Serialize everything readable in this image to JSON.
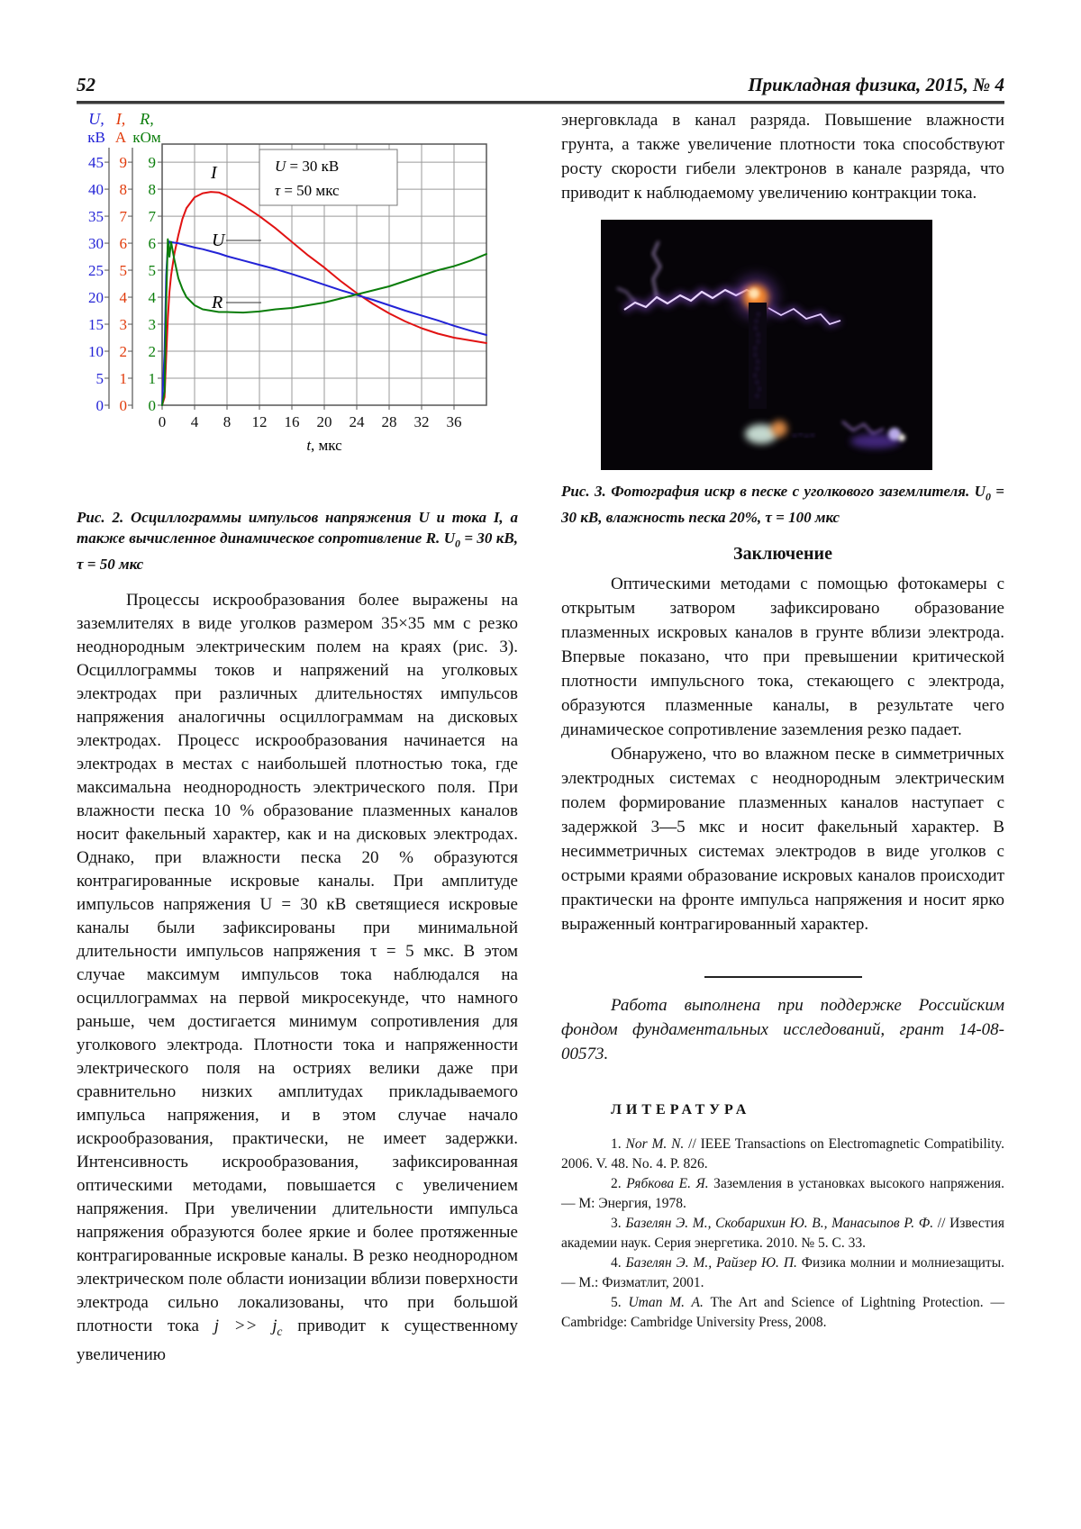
{
  "page": {
    "number": "52",
    "journal": "Прикладная физика, 2015, № 4"
  },
  "chart_data": {
    "type": "line",
    "x": [
      0,
      0.3,
      0.5,
      0.7,
      0.9,
      1.1,
      1.5,
      2,
      2.5,
      3,
      4,
      5,
      6,
      7,
      8,
      10,
      12,
      14,
      16,
      18,
      20,
      22,
      24,
      26,
      28,
      30,
      32,
      34,
      36,
      38,
      40
    ],
    "series": [
      {
        "name": "I",
        "unit": "А",
        "color": "#e11212",
        "per_div": 1,
        "values": [
          0,
          0.3,
          1.8,
          3.2,
          4.2,
          4.8,
          5.6,
          6.3,
          6.9,
          7.3,
          7.7,
          7.85,
          7.9,
          7.88,
          7.75,
          7.4,
          7.0,
          6.55,
          6.05,
          5.55,
          5.1,
          4.6,
          4.15,
          3.75,
          3.4,
          3.1,
          2.85,
          2.65,
          2.5,
          2.4,
          2.3
        ]
      },
      {
        "name": "U",
        "unit": "кВ",
        "color": "#2323d6",
        "per_div": 5,
        "values": [
          0,
          10,
          24,
          29.5,
          30.3,
          30.2,
          30.1,
          30.0,
          29.8,
          29.6,
          29.2,
          28.9,
          28.5,
          28.1,
          27.6,
          26.8,
          26.0,
          25.2,
          24.3,
          23.3,
          22.3,
          21.3,
          20.4,
          19.5,
          18.5,
          17.5,
          16.6,
          15.7,
          14.7,
          13.8,
          13.0
        ]
      },
      {
        "name": "R",
        "unit": "кОм",
        "color": "#0a7d0a",
        "per_div": 1,
        "values": [
          0,
          0.5,
          3.8,
          6.15,
          5.5,
          6.05,
          5.4,
          4.7,
          4.3,
          4.0,
          3.7,
          3.55,
          3.5,
          3.45,
          3.45,
          3.43,
          3.47,
          3.55,
          3.6,
          3.7,
          3.8,
          3.95,
          4.1,
          4.25,
          4.4,
          4.6,
          4.8,
          5.0,
          5.15,
          5.35,
          5.6
        ]
      }
    ],
    "xticks": [
      0,
      4,
      8,
      12,
      16,
      20,
      24,
      28,
      32,
      36
    ],
    "xlim": [
      0,
      40
    ],
    "y_divisions": [
      0,
      9
    ],
    "axes": [
      {
        "line1": "U,",
        "line2": "кВ",
        "color": "#2323d6",
        "ticks": "0–45, шаг 5"
      },
      {
        "line1": "I,",
        "line2": "А",
        "color": "#e13a0a",
        "ticks": "0–9, шаг 1"
      },
      {
        "line1": "R,",
        "line2": "кОм",
        "color": "#0a7d0a",
        "ticks": "0–9, шаг 1"
      }
    ],
    "xlabel": "t, мкс",
    "grid": "on",
    "legend_position": "inline-curve-labels"
  },
  "left_column": {
    "figure2": {
      "inset": {
        "var1": "U",
        "rest1": " = 30 кВ",
        "var2": "τ",
        "rest2": " = 50 мкс"
      },
      "curve_labels": {
        "i": "I",
        "u": "U",
        "r": "R"
      },
      "xlabel_var": "t",
      "xlabel_rest": ", мкс"
    },
    "caption": {
      "main": "Рис. 2. Осциллограммы импульсов напряжения U и тока I, а также вычисленное динамическое сопротивление R.",
      "var": "U",
      "sub": "0",
      "rest": " = 30 кВ, τ  = 50 мкс"
    },
    "body": {
      "before_j": "Процессы искрообразования более выражены на заземлителях в виде уголков размером 35×35 мм с резко неоднородным электрическим полем на краях (рис. 3). Осциллограммы токов и напряжений на уголковых электродах при различных длительностях импульсов напряжения аналогичны осциллограммам на дисковых электродах. Процесс искрообразования начинается на электродах в местах с наибольшей плотностью тока, где максимальна неоднородность электрического поля. При влажности песка 10 % образование плазменных каналов носит факельный характер, как и на дисковых электродах. Однако, при влажности песка 20 % образуются контрагированные искровые каналы. При амплитуде импульсов напряжения U = 30 кВ светящиеся искровые каналы были зафиксированы при минимальной длительности импульсов напряжения τ = 5 мкс. В этом случае максимум импульсов тока наблюдался на осциллограммах на первой микросекунде, что намного раньше, чем достигается минимум сопротивления для уголкового электрода. Плотности тока и напряженности электрического поля на остриях велики даже при сравнительно низких амплитудах прикладываемого импульса напряжения, и в этом случае начало искрообразования, практически, не имеет задержки. Интенсивность искрообразования, зафиксированная оптическими методами, повышается с увеличением напряжения. При увеличении длительности импульса напряжения образуются более яркие и более протяженные контрагированные искровые каналы. В резко неоднородном электрическом поле области ионизации вблизи поверхности электрода сильно локализованы, что при большой плотности тока ",
      "j1": "j >> j",
      "jsub": "c",
      "after_j": " приводит к существенному увеличению"
    }
  },
  "right_column": {
    "top_paragraph": "энерговклада в канал разряда. Повышение влажности грунта, а также увеличение плотности тока способствуют росту скорости гибели электронов в канале разряда, что приводит к наблюдаемому увеличению контракции тока.",
    "figure3_caption": {
      "main": "Рис. 3. Фотография искр в песке с уголкового заземлителя.",
      "var": "U",
      "sub": "0",
      "rest": " = 30 кВ, влажность песка 20%, τ  = 100 мкс"
    },
    "conclusion": {
      "heading": "Заключение",
      "p1": "Оптическими методами с помощью фотокамеры с открытым затвором зафиксировано образование плазменных искровых каналов в грунте вблизи электрода. Впервые показано, что при превышении критической плотности импульсного тока, стекающего с электрода, образуются плазменные каналы, в результате чего динамическое сопротивление заземления резко падает.",
      "p2": "Обнаружено, что во влажном песке в симметричных электродных системах с неоднородным электрическим полем формирование плазменных каналов наступает с задержкой 3—5 мкс и носит факельный характер. В несимметричных системах электродов в виде уголков с острыми краями образование искровых каналов происходит практически на фронте импульса напряжения и носит ярко выраженный контрагированный характер."
    },
    "acknowledgment": "Работа выполнена при поддержке Российским фондом фундаментальных исследований, грант 14-08-00573.",
    "literature": {
      "heading": "ЛИТЕРАТУРА",
      "items": [
        {
          "num": "1. ",
          "authors": "Nor M. N.",
          "rest": " // IEEE Transactions on Electromagnetic Compatibility. 2006. V. 48. No. 4. P. 826."
        },
        {
          "num": "2. ",
          "authors": "Рябкова Е. Я.",
          "rest": " Заземления в установках высокого напряжения. — М: Энергия, 1978."
        },
        {
          "num": "3. ",
          "authors": "Базелян Э. М., Скобарихин Ю. В., Манасыпов Р. Ф.",
          "rest": " // Известия академии наук. Серия энергетика. 2010. № 5. С. 33."
        },
        {
          "num": "4. ",
          "authors": "Базелян Э. М., Райзер Ю. П.",
          "rest": " Физика молнии и молниезащиты. — М.: Физматлит, 2001."
        },
        {
          "num": "5. ",
          "authors": "Uman M. A.",
          "rest": " The Art and Science of Lightning Protection. — Cambridge: Cambridge University Press, 2008."
        }
      ]
    }
  }
}
